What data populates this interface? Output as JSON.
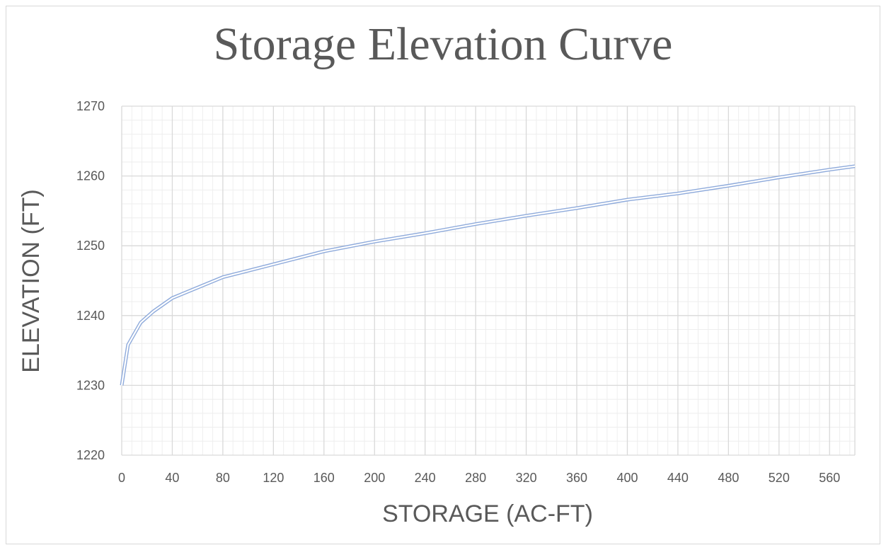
{
  "chart_data": {
    "type": "line",
    "title": "Storage Elevation Curve",
    "xlabel": "STORAGE (AC-FT)",
    "ylabel": "ELEVATION (FT)",
    "xlim": [
      0,
      580
    ],
    "ylim": [
      1220,
      1270
    ],
    "x_major_step": 40,
    "x_minor_step": 8,
    "y_major_step": 10,
    "y_minor_step": 2,
    "x_ticks": [
      "0",
      "40",
      "80",
      "120",
      "160",
      "200",
      "240",
      "280",
      "320",
      "360",
      "400",
      "440",
      "480",
      "520",
      "560"
    ],
    "y_ticks": [
      "1220",
      "1230",
      "1240",
      "1250",
      "1260",
      "1270"
    ],
    "grid": true,
    "legend": "none",
    "series": [
      {
        "color": "#8eaadb",
        "x": [
          0,
          5,
          15,
          25,
          40,
          80,
          160,
          200,
          240,
          280,
          320,
          360,
          400,
          440,
          480,
          520,
          560,
          580
        ],
        "y": [
          1230,
          1235.8,
          1239,
          1240.6,
          1242.5,
          1245.5,
          1249.2,
          1250.6,
          1251.8,
          1253.1,
          1254.3,
          1255.4,
          1256.6,
          1257.5,
          1258.6,
          1259.8,
          1260.9,
          1261.4
        ]
      }
    ]
  }
}
